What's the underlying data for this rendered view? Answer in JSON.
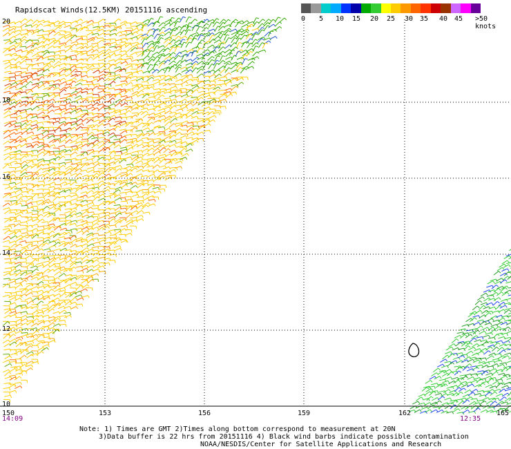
{
  "title": "Rapidscat Winds(12.5KM) 20151116 ascending",
  "scale": {
    "colors": [
      "#555555",
      "#999999",
      "#00cccc",
      "#00aaff",
      "#0033ff",
      "#0000aa",
      "#00aa00",
      "#33cc33",
      "#ffff00",
      "#ffcc00",
      "#ff9900",
      "#ff6600",
      "#ff3300",
      "#cc0000",
      "#993300",
      "#cc66ff",
      "#ff00ff",
      "#660099"
    ],
    "labels": [
      "0",
      "5",
      "10",
      "15",
      "20",
      "25",
      "30",
      "35",
      "40",
      "45",
      ">50 knots"
    ],
    "label_positions": [
      0,
      26,
      50,
      74,
      100,
      124,
      150,
      172,
      200,
      222,
      252
    ]
  },
  "lat_labels": [
    "20",
    "18",
    "16",
    "14",
    "12",
    "10"
  ],
  "lon_labels": [
    "150",
    "153",
    "156",
    "159",
    "162",
    "165"
  ],
  "times": {
    "left": "14:09",
    "right": "12:35"
  },
  "notes": {
    "line1": "Note: 1) Times are GMT 2)Times along bottom correspond to measurement at 20N",
    "line2": "3)Data buffer is 22 hrs from 20151116 4) Black wind barbs indicate possible contamination",
    "line3": "NOAA/NESDIS/Center for Satellite Applications and Research"
  }
}
